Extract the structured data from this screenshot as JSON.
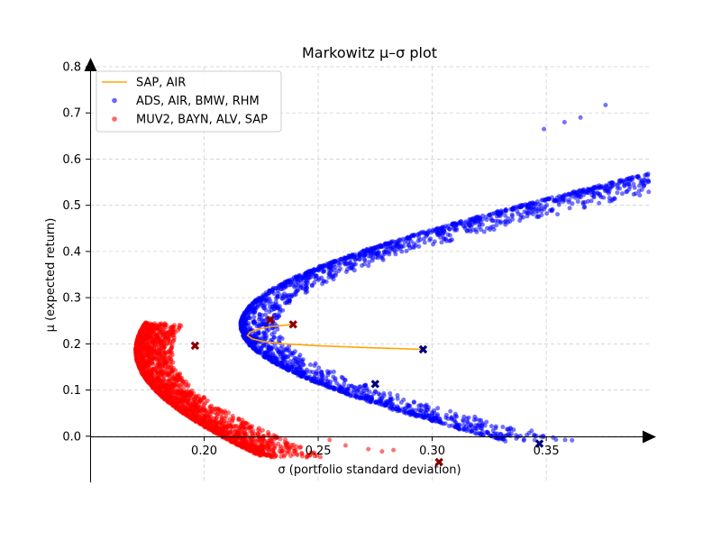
{
  "chart_data": {
    "type": "scatter",
    "title": "Markowitz μ–σ plot",
    "xlabel": "σ  (portfolio standard deviation)",
    "ylabel": "μ  (expected return)",
    "xlim": [
      0.15,
      0.395
    ],
    "ylim": [
      -0.1,
      0.8
    ],
    "x_ticks": [
      {
        "value": 0.2,
        "label": "0.20"
      },
      {
        "value": 0.25,
        "label": "0.25"
      },
      {
        "value": 0.3,
        "label": "0.30"
      },
      {
        "value": 0.35,
        "label": "0.35"
      }
    ],
    "y_ticks": [
      {
        "value": 0.0,
        "label": "0.0"
      },
      {
        "value": 0.1,
        "label": "0.1"
      },
      {
        "value": 0.2,
        "label": "0.2"
      },
      {
        "value": 0.3,
        "label": "0.3"
      },
      {
        "value": 0.4,
        "label": "0.4"
      },
      {
        "value": 0.5,
        "label": "0.5"
      },
      {
        "value": 0.6,
        "label": "0.6"
      },
      {
        "value": 0.7,
        "label": "0.7"
      },
      {
        "value": 0.8,
        "label": "0.8"
      }
    ],
    "grid": true,
    "legend_position": "top-left",
    "legend": [
      {
        "label": "SAP, AIR",
        "kind": "line",
        "color": "#ffa500"
      },
      {
        "label": "ADS, AIR, BMW, RHM",
        "kind": "scatter",
        "color": "#0000ff"
      },
      {
        "label": "MUV2, BAYN, ALV, SAP",
        "kind": "scatter",
        "color": "#ff0000"
      }
    ],
    "series": [
      {
        "name": "ADS, AIR, BMW, RHM",
        "type": "scatter",
        "color": "#0000ff",
        "frontier": {
          "mu_min_var": 0.24,
          "sigma_min": 0.216,
          "curvature": 1.02,
          "mu_top": 0.72,
          "mu_bottom": -0.01
        },
        "outliers": [
          [
            0.376,
            0.717
          ],
          [
            0.365,
            0.69
          ],
          [
            0.358,
            0.68
          ],
          [
            0.349,
            0.665
          ],
          [
            0.33,
            0.005
          ],
          [
            0.316,
            0.04
          ],
          [
            0.312,
            0.015
          ],
          [
            0.306,
            0.04
          ]
        ],
        "markers": [
          [
            0.296,
            0.188
          ],
          [
            0.275,
            0.113
          ],
          [
            0.347,
            -0.016
          ]
        ]
      },
      {
        "name": "MUV2, BAYN, ALV, SAP",
        "type": "scatter",
        "color": "#ff0000",
        "frontier": {
          "mu_min_var": 0.185,
          "sigma_min": 0.17,
          "curvature": 0.42,
          "mu_top": 0.245,
          "mu_bottom": -0.045
        },
        "outliers": [
          [
            0.262,
            -0.02
          ],
          [
            0.272,
            -0.028
          ],
          [
            0.278,
            -0.033
          ],
          [
            0.283,
            -0.03
          ],
          [
            0.255,
            -0.008
          ]
        ],
        "markers": [
          [
            0.196,
            0.196
          ],
          [
            0.229,
            0.252
          ],
          [
            0.239,
            0.242
          ],
          [
            0.303,
            -0.056
          ]
        ]
      },
      {
        "name": "SAP, AIR",
        "type": "line",
        "color": "#ffa500",
        "x": [
          0.239,
          0.23,
          0.224,
          0.22,
          0.219,
          0.221,
          0.226,
          0.235,
          0.25,
          0.27,
          0.296
        ],
        "y": [
          0.242,
          0.238,
          0.232,
          0.225,
          0.218,
          0.211,
          0.205,
          0.2,
          0.196,
          0.192,
          0.188
        ]
      }
    ]
  }
}
